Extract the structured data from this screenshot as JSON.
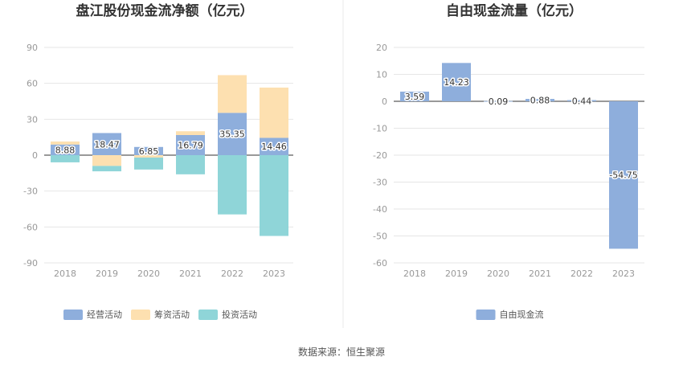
{
  "source": "数据来源：恒生聚源",
  "chart_data": [
    {
      "type": "bar",
      "stacked": true,
      "title": "盘江股份现金流净额（亿元）",
      "categories": [
        "2018",
        "2019",
        "2020",
        "2021",
        "2022",
        "2023"
      ],
      "ylim": [
        -90,
        90
      ],
      "yticks": [
        90,
        60,
        30,
        0,
        -30,
        -60,
        -90
      ],
      "grid": true,
      "legend_position": "bottom",
      "series": [
        {
          "name": "经营活动",
          "color": "#8eaedc",
          "values": [
            8.88,
            18.47,
            6.85,
            16.79,
            35.35,
            14.46
          ],
          "labels": [
            "8.88",
            "18.47",
            "6.85",
            "16.79",
            "35.35",
            "14.46"
          ]
        },
        {
          "name": "筹资活动",
          "color": "#fde0b0",
          "values": [
            2.5,
            -9.0,
            -2.0,
            3.2,
            31.5,
            42.0
          ]
        },
        {
          "name": "投资活动",
          "color": "#8fd5d8",
          "values": [
            -6.0,
            -4.5,
            -10.0,
            -16.0,
            -49.5,
            -67.5
          ]
        }
      ]
    },
    {
      "type": "bar",
      "title": "自由现金流量（亿元）",
      "categories": [
        "2018",
        "2019",
        "2020",
        "2021",
        "2022",
        "2023"
      ],
      "ylim": [
        -60,
        20
      ],
      "yticks": [
        20,
        10,
        0,
        -10,
        -20,
        -30,
        -40,
        -50,
        -60
      ],
      "grid": true,
      "legend_position": "bottom",
      "series": [
        {
          "name": "自由现金流",
          "color": "#8eaedc",
          "values": [
            3.59,
            14.23,
            0.09,
            0.88,
            0.44,
            -54.75
          ],
          "labels": [
            "3.59",
            "14.23",
            "0.09",
            "0.88",
            "0.44",
            "-54.75"
          ]
        }
      ]
    }
  ]
}
